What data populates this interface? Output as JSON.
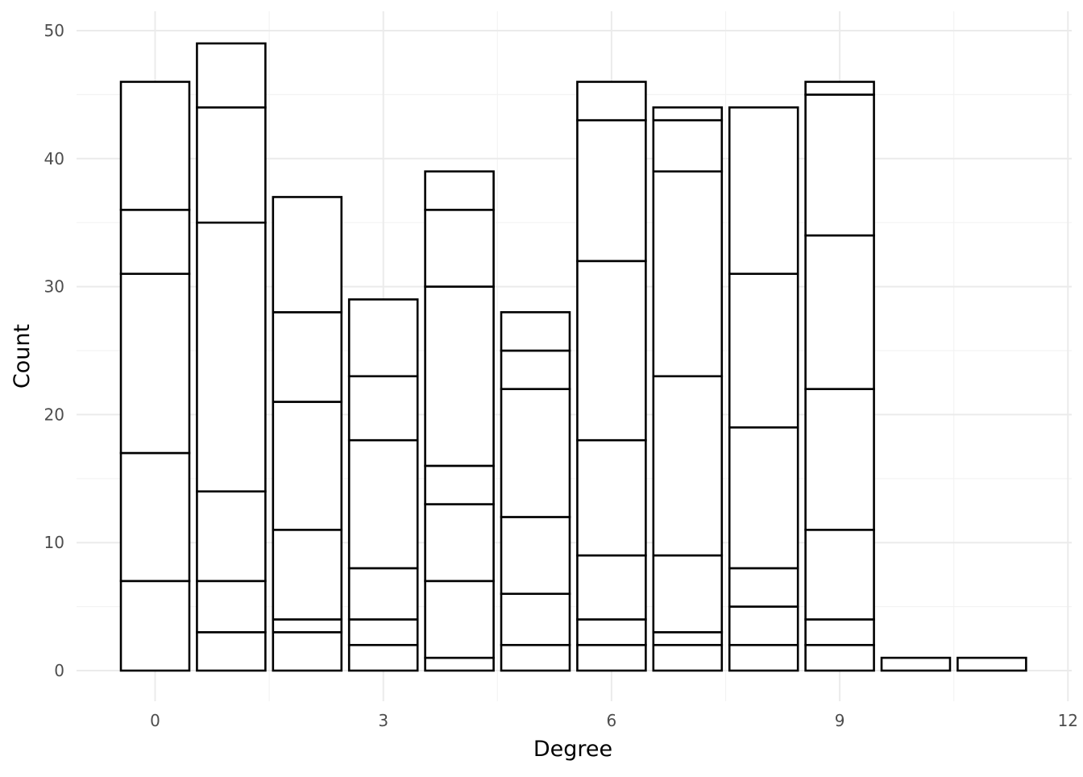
{
  "chart_data": {
    "type": "bar",
    "stacked": true,
    "title": "",
    "xlabel": "Degree",
    "ylabel": "Count",
    "xlim": [
      -0.5,
      12
    ],
    "ylim": [
      0,
      50
    ],
    "x_ticks": [
      0,
      3,
      6,
      9,
      12
    ],
    "y_ticks": [
      0,
      10,
      20,
      30,
      40,
      50
    ],
    "grid": true,
    "legend": "none",
    "bar_fill": "#ffffff",
    "bar_stroke": "#000000",
    "categories": [
      0,
      1,
      2,
      3,
      4,
      5,
      6,
      7,
      8,
      9,
      10,
      11
    ],
    "stack_boundaries": [
      [
        7,
        17,
        31,
        36,
        46
      ],
      [
        3,
        7,
        14,
        35,
        44,
        49
      ],
      [
        3,
        4,
        11,
        21,
        28,
        37
      ],
      [
        2,
        4,
        8,
        18,
        23,
        29
      ],
      [
        1,
        7,
        13,
        16,
        30,
        36,
        39
      ],
      [
        2,
        6,
        12,
        22,
        25,
        28
      ],
      [
        2,
        4,
        9,
        18,
        32,
        43,
        46
      ],
      [
        2,
        3,
        9,
        23,
        39,
        43,
        44
      ],
      [
        2,
        5,
        8,
        19,
        31,
        44
      ],
      [
        2,
        4,
        11,
        22,
        34,
        45,
        46
      ],
      [
        1
      ],
      [
        1
      ]
    ],
    "totals": [
      46,
      49,
      37,
      29,
      39,
      28,
      46,
      44,
      44,
      46,
      1,
      1
    ]
  }
}
